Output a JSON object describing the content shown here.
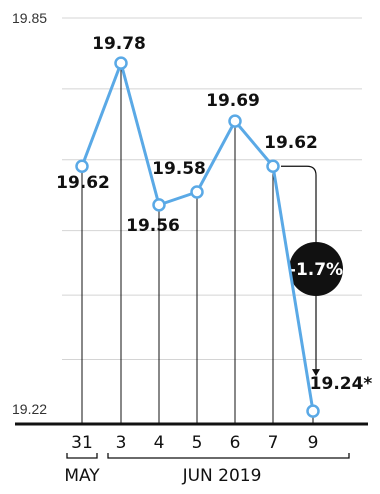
{
  "chart_data": {
    "type": "line",
    "categories": [
      "31",
      "3",
      "4",
      "5",
      "6",
      "7",
      "9"
    ],
    "values": [
      19.62,
      19.78,
      19.56,
      19.58,
      19.69,
      19.62,
      19.24
    ],
    "data_labels": [
      "19.62",
      "19.78",
      "19.56",
      "19.58",
      "19.69",
      "19.62",
      "19.24*"
    ],
    "ylim": [
      19.22,
      19.85
    ],
    "y_tick_labels": [
      "19.85",
      "19.22"
    ],
    "x_groups": [
      {
        "label": "MAY",
        "categories": [
          "31"
        ]
      },
      {
        "label": "JUN 2019",
        "categories": [
          "3",
          "4",
          "5",
          "6",
          "7",
          "9"
        ]
      }
    ],
    "annotation": {
      "text": "-1.7%",
      "from": "7",
      "to": "9"
    },
    "grid": true,
    "line_color": "#5aa9e6",
    "badge_color": "#111111"
  }
}
